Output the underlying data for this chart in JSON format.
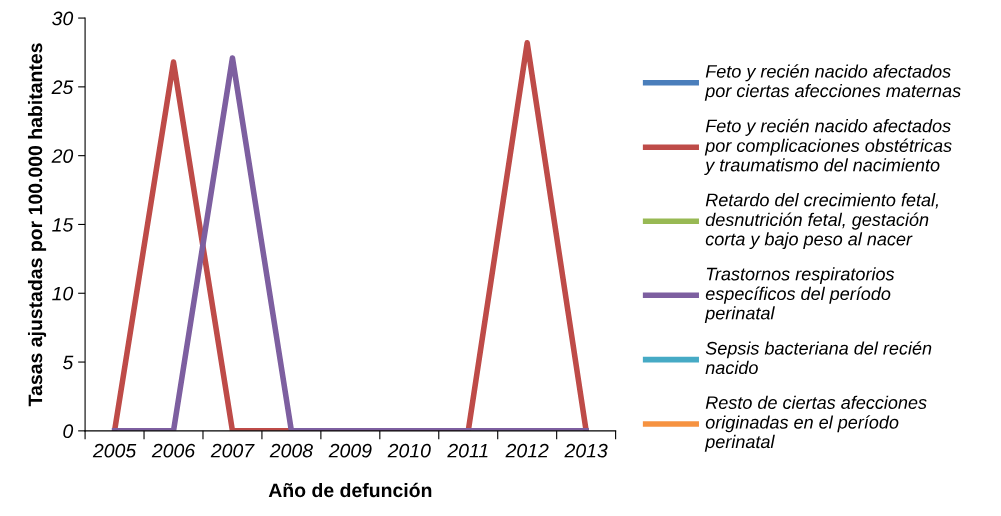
{
  "chart_data": {
    "type": "line",
    "xlabel": "Año de defunción",
    "ylabel": "Tasas ajustadas por 100.000 habitantes",
    "categories": [
      "2005",
      "2006",
      "2007",
      "2008",
      "2009",
      "2010",
      "2011",
      "2012",
      "2013"
    ],
    "ylim": [
      0,
      30
    ],
    "yticks": [
      0,
      5,
      10,
      15,
      20,
      25,
      30
    ],
    "grid": false,
    "legend": "right",
    "marker": "none",
    "line_style": "solid",
    "series": [
      {
        "name": "Feto y recién nacido afectados\npor ciertas afecciones maternas",
        "color": "#4a7ebb",
        "values": [
          null,
          null,
          null,
          null,
          null,
          null,
          null,
          null,
          null
        ]
      },
      {
        "name": "Feto y recién nacido afectados\npor complicaciones obstétricas\ny traumatismo del nacimiento",
        "color": "#be4b48",
        "values": [
          0,
          26.8,
          0,
          0,
          0,
          0,
          0,
          28.2,
          0
        ]
      },
      {
        "name": "Retardo del crecimiento fetal,\ndesnutrición fetal, gestación\ncorta y bajo peso al nacer",
        "color": "#98b954",
        "values": [
          null,
          null,
          null,
          null,
          null,
          null,
          null,
          null,
          null
        ]
      },
      {
        "name": "Trastornos respiratorios\nespecíficos del período\nperinatal",
        "color": "#7d5fa0",
        "values": [
          0,
          0,
          27.1,
          0,
          0,
          0,
          0,
          0,
          0
        ]
      },
      {
        "name": "Sepsis bacteriana del recién\nnacido",
        "color": "#46aac5",
        "values": [
          null,
          null,
          null,
          null,
          null,
          null,
          null,
          null,
          null
        ]
      },
      {
        "name": "Resto de ciertas afecciones\noriginadas en el período\nperinatal",
        "color": "#f69240",
        "values": [
          null,
          null,
          null,
          null,
          null,
          null,
          null,
          null,
          null
        ]
      }
    ]
  }
}
